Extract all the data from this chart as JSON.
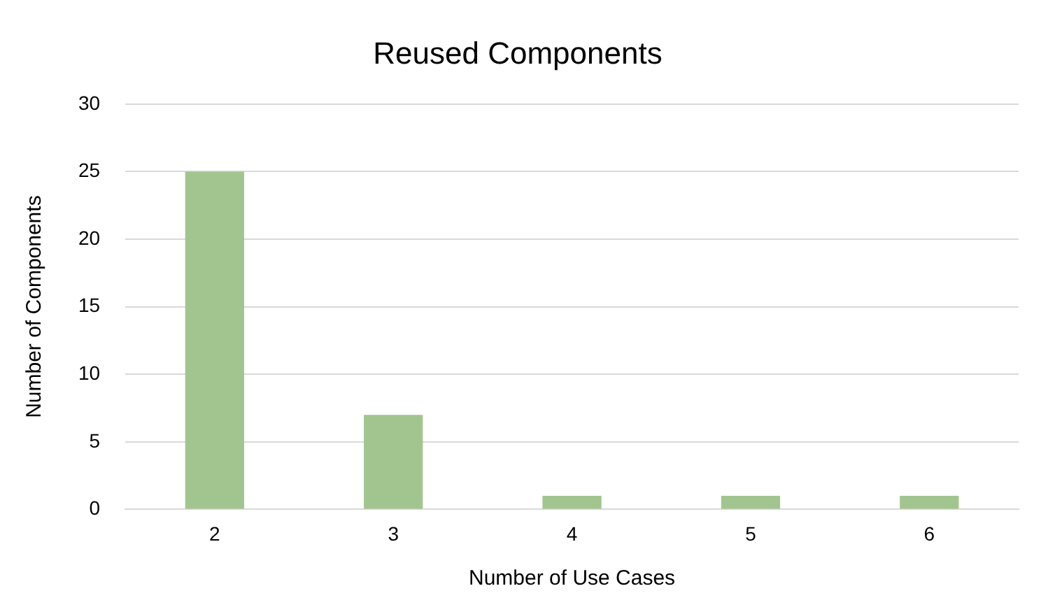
{
  "chart_data": {
    "type": "bar",
    "title": "Reused Components",
    "xlabel": "Number of Use Cases",
    "ylabel": "Number of Components",
    "categories": [
      "2",
      "3",
      "4",
      "5",
      "6"
    ],
    "values": [
      25,
      7,
      1,
      1,
      1
    ],
    "color": "#a2c58f",
    "ylim": [
      0,
      30
    ],
    "yticks": [
      0,
      5,
      10,
      15,
      20,
      25,
      30
    ],
    "grid": "y",
    "legend": false
  }
}
